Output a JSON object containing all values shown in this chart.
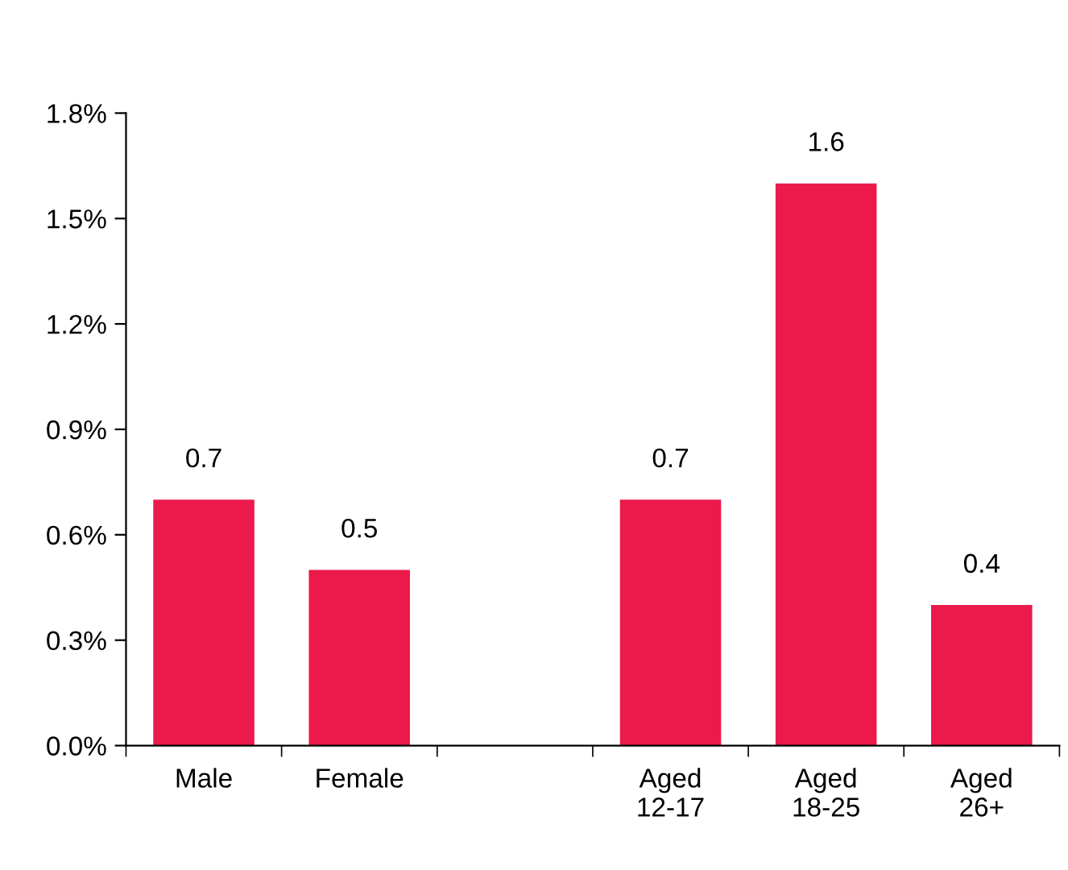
{
  "chart_data": {
    "type": "bar",
    "categories": [
      "Male",
      "Female",
      null,
      "Aged\n12-17",
      "Aged\n18-25",
      "Aged\n26+"
    ],
    "values": [
      0.7,
      0.5,
      null,
      0.7,
      1.6,
      0.4
    ],
    "color": "#ec1a4b",
    "ylim": [
      0,
      1.8
    ],
    "yticks": [
      {
        "value": 0,
        "label": "0.0%"
      },
      {
        "value": 0.3,
        "label": "0.3%"
      },
      {
        "value": 0.6,
        "label": "0.6%"
      },
      {
        "value": 0.9,
        "label": "0.9%"
      },
      {
        "value": 1.2,
        "label": "1.2%"
      },
      {
        "value": 1.5,
        "label": "1.5%"
      },
      {
        "value": 1.8,
        "label": "1.8%"
      }
    ],
    "data_labels": true,
    "grid": false
  }
}
